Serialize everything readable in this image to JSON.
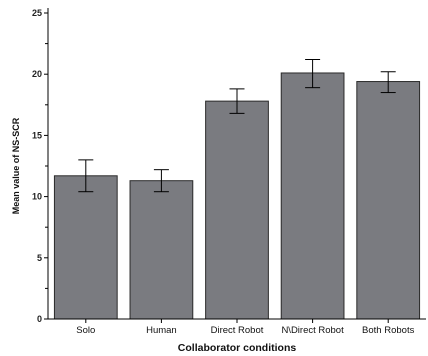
{
  "chart_data": {
    "type": "bar",
    "categories": [
      "Solo",
      "Human",
      "Direct Robot",
      "N\\Direct Robot",
      "Both Robots"
    ],
    "values": [
      11.7,
      11.3,
      17.8,
      20.1,
      19.4
    ],
    "error_bars": {
      "lower": [
        10.4,
        10.4,
        16.8,
        18.9,
        18.5
      ],
      "upper": [
        13.0,
        12.2,
        18.8,
        21.2,
        20.2
      ]
    },
    "title": "",
    "xlabel": "Collaborator conditions",
    "ylabel": "Mean value of NS-SCR",
    "ylim": [
      0,
      25
    ],
    "yticks": [
      "0",
      "5",
      "10",
      "15",
      "20",
      "25"
    ],
    "grid": false,
    "bar_color": "#7a7b80"
  }
}
